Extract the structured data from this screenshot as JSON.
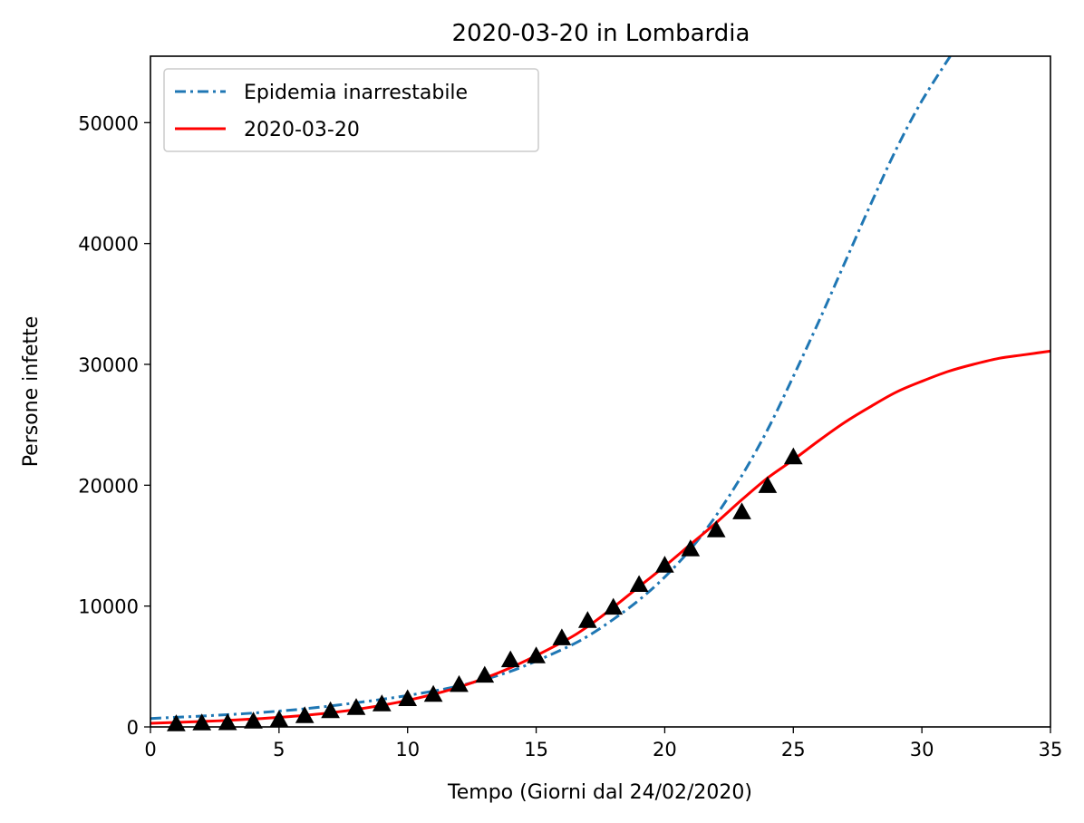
{
  "chart_data": {
    "type": "line",
    "title": "2020-03-20 in Lombardia",
    "xlabel": "Tempo (Giorni dal 24/02/2020)",
    "ylabel": "Persone infette",
    "xlim": [
      0,
      35
    ],
    "ylim": [
      0,
      55500
    ],
    "xticks": [
      0,
      5,
      10,
      15,
      20,
      25,
      30,
      35
    ],
    "yticks": [
      0,
      10000,
      20000,
      30000,
      40000,
      50000
    ],
    "grid": false,
    "legend_position": "top-left",
    "series": [
      {
        "name": "Epidemia inarrestabile",
        "style": "dashdot",
        "color": "#1f77b4",
        "x": [
          0,
          2,
          4,
          6,
          8,
          10,
          12,
          14,
          16,
          17,
          18,
          19,
          20,
          21,
          22,
          23,
          24,
          25,
          26,
          27,
          28,
          29,
          30,
          31.1
        ],
        "y": [
          700,
          900,
          1150,
          1500,
          2000,
          2600,
          3400,
          4600,
          6400,
          7500,
          8900,
          10500,
          12400,
          14700,
          17500,
          20800,
          24600,
          29000,
          33600,
          38400,
          43200,
          47800,
          51800,
          55500
        ]
      },
      {
        "name": "2020-03-20",
        "style": "solid",
        "color": "#ff0000",
        "x": [
          0,
          2,
          4,
          6,
          8,
          10,
          12,
          14,
          16,
          17,
          18,
          19,
          20,
          21,
          22,
          23,
          24,
          25,
          26,
          27,
          28,
          29,
          30,
          31,
          32,
          33,
          34,
          35
        ],
        "y": [
          300,
          450,
          650,
          950,
          1450,
          2200,
          3300,
          4900,
          7000,
          8300,
          9900,
          11600,
          13300,
          15100,
          16900,
          18800,
          20600,
          22100,
          23700,
          25200,
          26500,
          27700,
          28600,
          29400,
          30000,
          30500,
          30800,
          31100
        ]
      }
    ],
    "observations": {
      "marker": "triangle",
      "color": "#000000",
      "x": [
        1,
        2,
        3,
        4,
        5,
        6,
        7,
        8,
        9,
        10,
        11,
        12,
        13,
        14,
        15,
        16,
        17,
        18,
        19,
        20,
        21,
        22,
        23,
        24,
        25
      ],
      "y": [
        170,
        240,
        260,
        400,
        530,
        840,
        1250,
        1520,
        1820,
        2250,
        2600,
        3420,
        4190,
        5470,
        5790,
        7280,
        8720,
        9820,
        11700,
        13300,
        14650,
        16220,
        17710,
        19880,
        22260
      ]
    }
  }
}
